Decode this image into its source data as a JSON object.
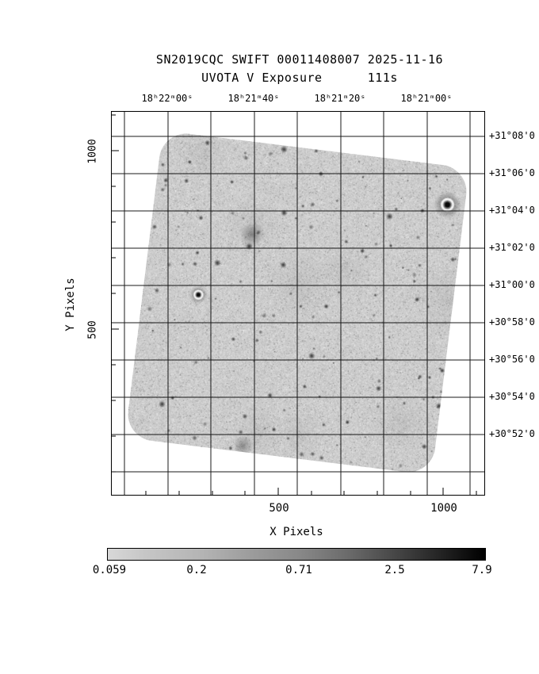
{
  "header": {
    "title": "SN2019CQC SWIFT 00011408007 2025-11-16",
    "subtitle": "UVOTA V Exposure      111s"
  },
  "axes": {
    "top": {
      "labels": [
        "18ʰ22ᵐ00ˢ",
        "18ʰ21ᵐ40ˢ",
        "18ʰ21ᵐ20ˢ",
        "18ʰ21ᵐ00ˢ"
      ]
    },
    "right": {
      "labels": [
        "+31°08'0",
        "+31°06'0",
        "+31°04'0",
        "+31°02'0",
        "+31°00'0",
        "+30°58'0",
        "+30°56'0",
        "+30°54'0",
        "+30°52'0"
      ]
    },
    "left": {
      "title": "Y Pixels",
      "ticks": [
        "1000",
        "500"
      ]
    },
    "bottom": {
      "title": "X Pixels",
      "ticks": [
        "500",
        "1000"
      ]
    }
  },
  "colorbar": {
    "labels": [
      "0.059",
      "0.2",
      "0.71",
      "2.5",
      "7.9"
    ]
  },
  "chart_data": {
    "type": "heatmap",
    "title": "SN2019CQC SWIFT 00011408007 2025-11-16",
    "subtitle": "UVOTA V Exposure 111s",
    "xlabel": "X Pixels",
    "ylabel": "Y Pixels",
    "xlim": [
      0,
      1130
    ],
    "ylim": [
      0,
      1120
    ],
    "x_ticks": [
      500,
      1000
    ],
    "y_ticks": [
      500,
      1000
    ],
    "ra_gridlines": [
      "18h22m00s",
      "18h21m40s",
      "18h21m20s",
      "18h21m00s"
    ],
    "dec_gridlines": [
      "+31°08'0",
      "+31°06'0",
      "+31°04'0",
      "+31°02'0",
      "+31°00'0",
      "+30°58'0",
      "+30°56'0",
      "+30°54'0",
      "+30°52'0"
    ],
    "grid": true,
    "colorbar": {
      "scale": "log",
      "tick_values": [
        0.059,
        0.2,
        0.71,
        2.5,
        7.9
      ],
      "low_color": "#d8d8d8",
      "high_color": "#000000"
    },
    "image_style": "inverted grayscale starfield, square detector footprint rotated ~7deg with rounded corners"
  }
}
